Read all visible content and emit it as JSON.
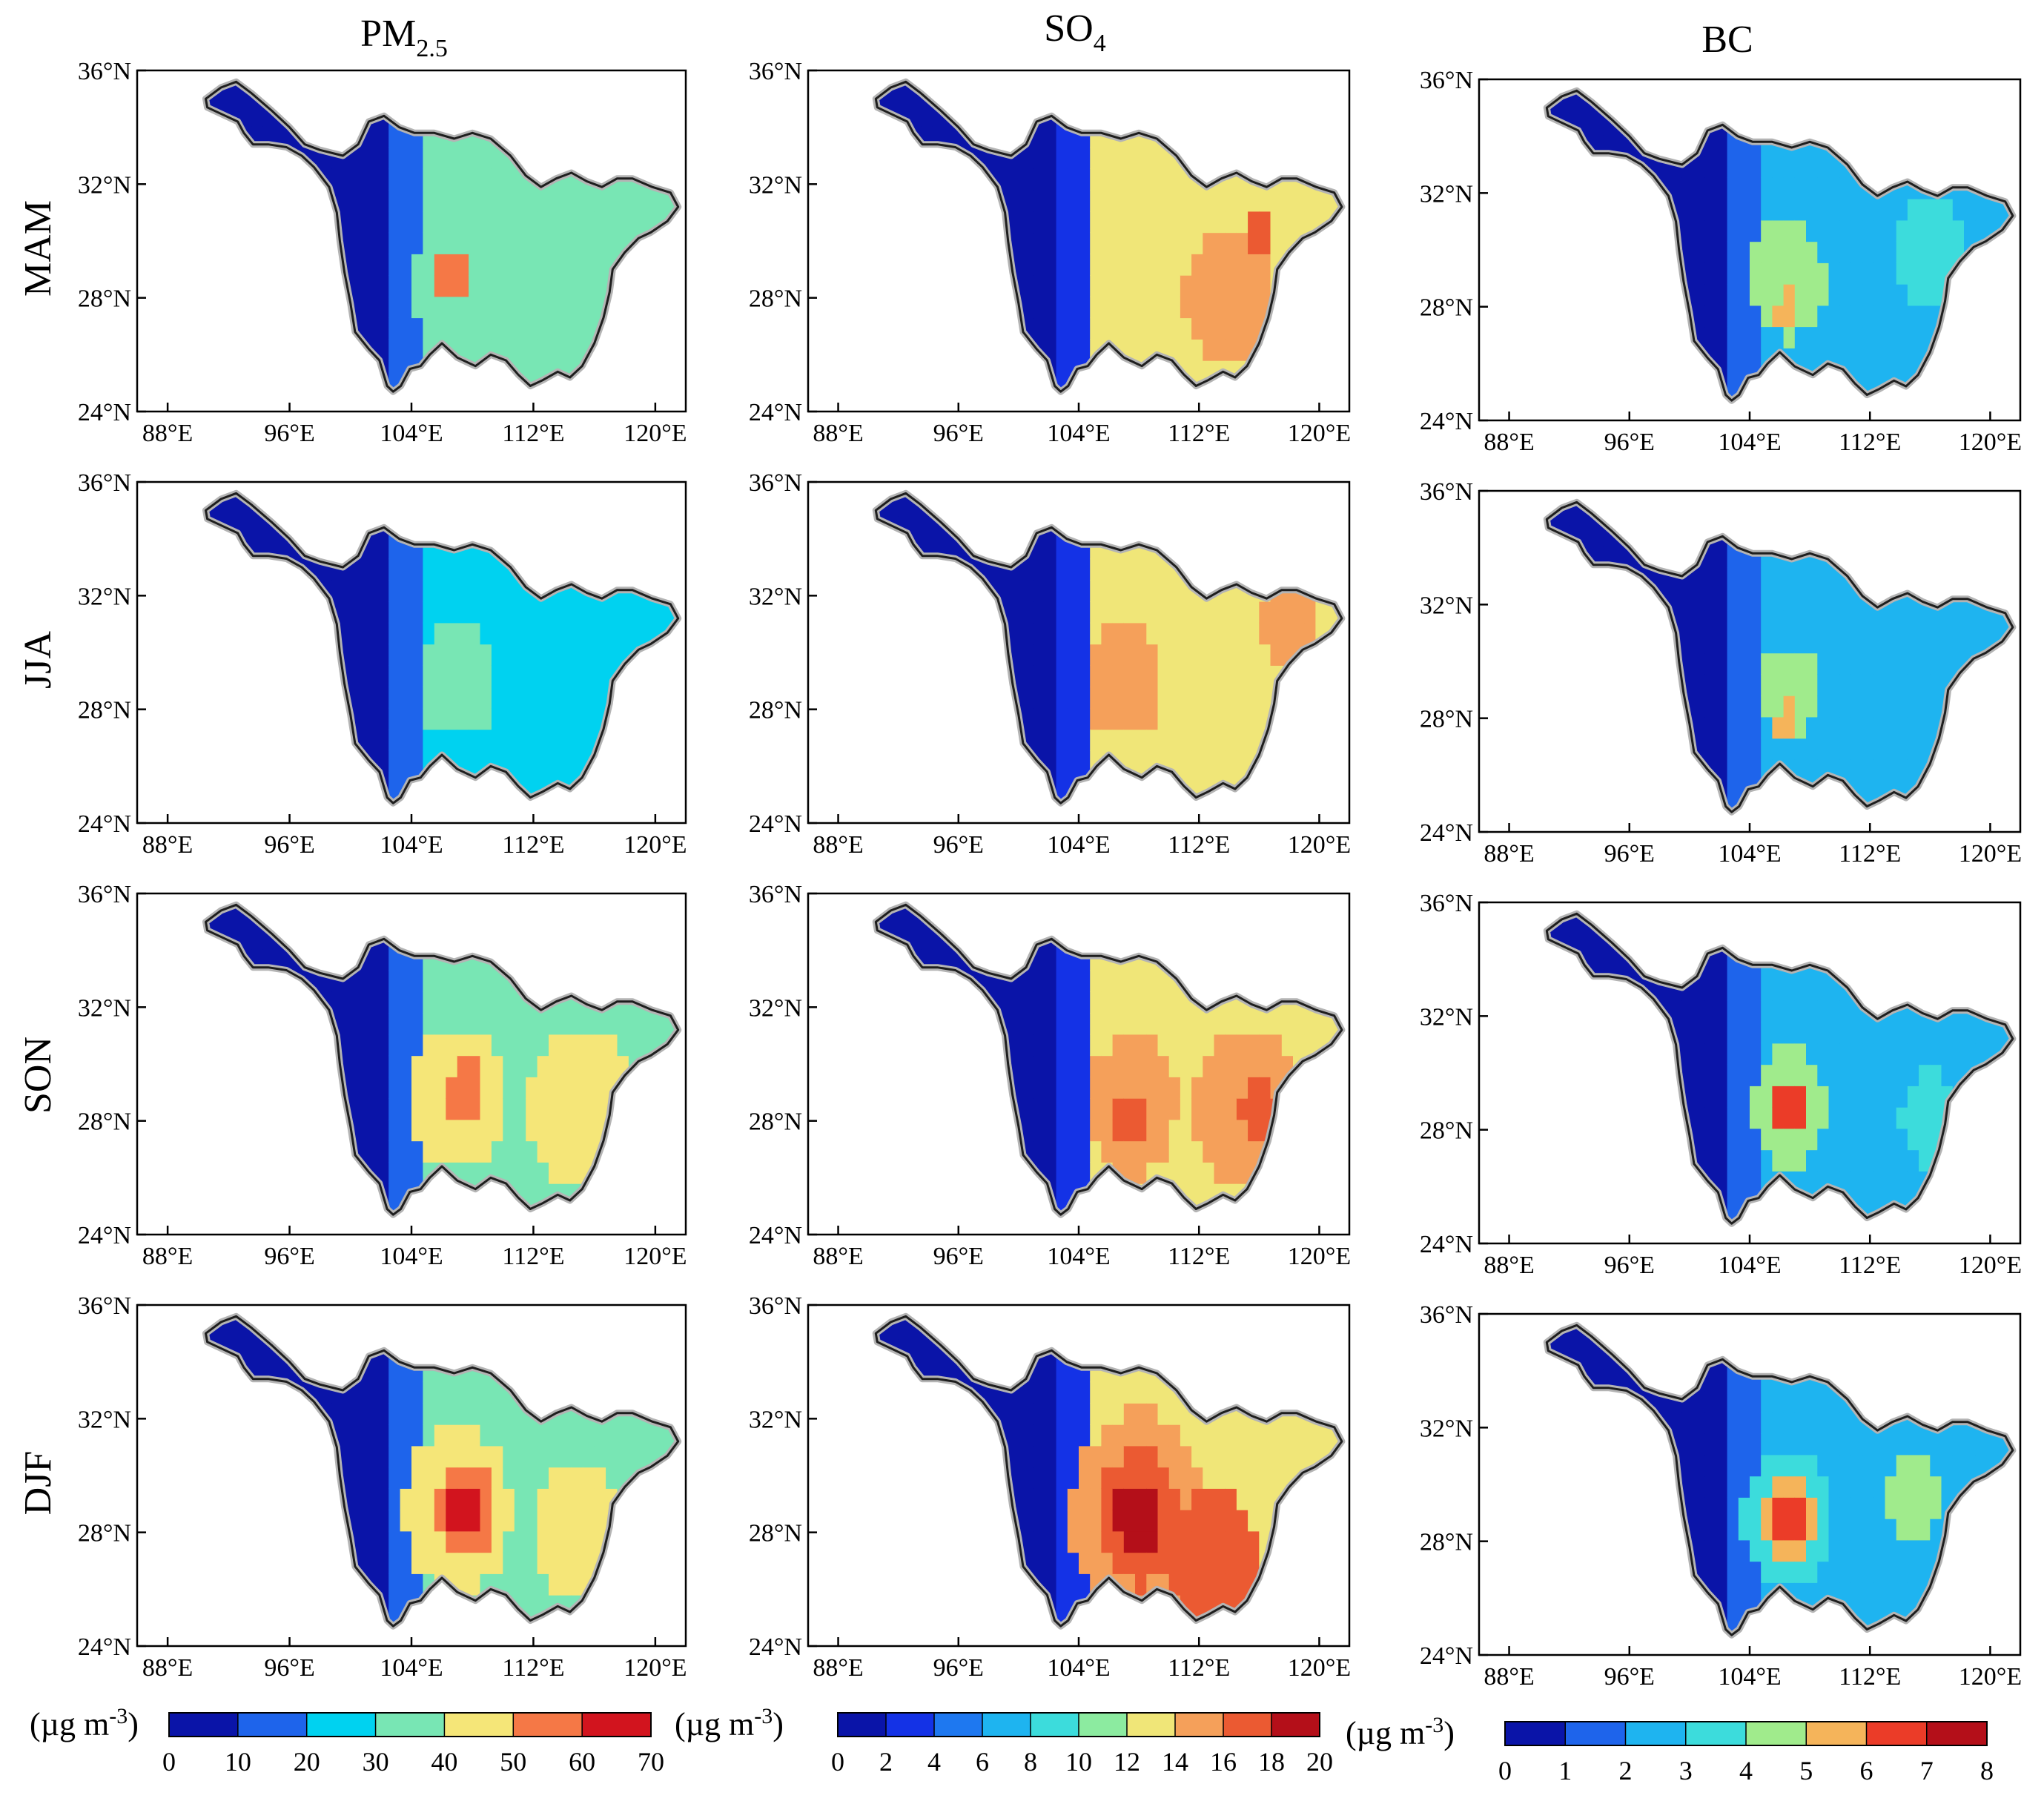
{
  "figure": {
    "columns": [
      {
        "title": "PM",
        "title_sub": "2.5"
      },
      {
        "title": "SO",
        "title_sub": "4"
      },
      {
        "title": "BC",
        "title_sub": ""
      }
    ],
    "seasons": [
      "MAM",
      "JJA",
      "SON",
      "DJF"
    ],
    "lat_ticks": [
      "24°N",
      "28°N",
      "32°N",
      "36°N"
    ],
    "lon_ticks": [
      "88°E",
      "96°E",
      "104°E",
      "112°E",
      "120°E"
    ],
    "lon_range": [
      86,
      122
    ],
    "lat_range": [
      24,
      36
    ]
  },
  "colorbars": [
    {
      "unit": "(µg m",
      "unit_sup": "-3",
      "unit_close": ")",
      "ticks": [
        "0",
        "10",
        "20",
        "30",
        "40",
        "50",
        "60",
        "70"
      ],
      "colors": [
        "#0a14a8",
        "#1e64eb",
        "#00d2f0",
        "#78e6b4",
        "#f5e678",
        "#f57846",
        "#d2141e"
      ]
    },
    {
      "unit": "(µg m",
      "unit_sup": "-3",
      "unit_close": ")",
      "ticks": [
        "0",
        "2",
        "4",
        "6",
        "8",
        "10",
        "12",
        "14",
        "16",
        "18",
        "20"
      ],
      "colors": [
        "#0a14a8",
        "#1432e6",
        "#1e78f0",
        "#1eb4f0",
        "#3cdcdc",
        "#8ceba0",
        "#f0e678",
        "#f5a05a",
        "#eb5a32",
        "#b40f19"
      ]
    },
    {
      "unit": "(µg m",
      "unit_sup": "-3",
      "unit_close": ")",
      "ticks": [
        "0",
        "1",
        "2",
        "3",
        "4",
        "5",
        "6",
        "7",
        "8"
      ],
      "colors": [
        "#0a14a8",
        "#1e64eb",
        "#1eb4f0",
        "#3cdcdc",
        "#a0eb8c",
        "#f5b45a",
        "#eb3c28",
        "#b40f19"
      ]
    }
  ],
  "map_fields": [
    [
      {
        "base": 3,
        "blobs": [
          [
            [
              107,
              28.5
            ],
            3,
            3
          ],
          [
            [
              106.5,
              28.8
            ],
            1.2,
            5
          ],
          [
            [
              114,
              28
            ],
            2.2,
            3
          ],
          [
            [
              104,
              31
            ],
            1.5,
            1
          ]
        ]
      },
      {
        "base": 6,
        "blobs": [
          [
            [
              114,
              28
            ],
            3,
            7
          ],
          [
            [
              108,
              28.5
            ],
            2.5,
            6
          ],
          [
            [
              116,
              30
            ],
            1,
            8
          ]
        ]
      },
      {
        "base": 2,
        "blobs": [
          [
            [
              106.5,
              29
            ],
            2.5,
            4
          ],
          [
            [
              106.5,
              28
            ],
            0.8,
            5
          ],
          [
            [
              116,
              30
            ],
            2.5,
            3
          ],
          [
            [
              112,
              27
            ],
            1.5,
            1
          ]
        ]
      }
    ],
    [
      {
        "base": 2,
        "blobs": [
          [
            [
              107,
              29
            ],
            2.5,
            3
          ],
          [
            [
              112,
              27
            ],
            3,
            2
          ]
        ]
      },
      {
        "base": 6,
        "blobs": [
          [
            [
              107,
              29
            ],
            2.5,
            7
          ],
          [
            [
              114,
              28
            ],
            2,
            6
          ],
          [
            [
              118,
              31
            ],
            2,
            7
          ]
        ]
      },
      {
        "base": 2,
        "blobs": [
          [
            [
              106.5,
              29
            ],
            2,
            4
          ],
          [
            [
              106.5,
              28
            ],
            0.8,
            5
          ],
          [
            [
              110,
              29
            ],
            1.8,
            1
          ]
        ]
      }
    ],
    [
      {
        "base": 3,
        "blobs": [
          [
            [
              107,
              28.8
            ],
            3,
            4
          ],
          [
            [
              107.5,
              29
            ],
            1.3,
            5
          ],
          [
            [
              115,
              28.5
            ],
            3.5,
            4
          ],
          [
            [
              112,
              31
            ],
            2,
            2
          ]
        ]
      },
      {
        "base": 6,
        "blobs": [
          [
            [
              107.5,
              28.5
            ],
            3,
            7
          ],
          [
            [
              107.5,
              28
            ],
            1.2,
            8
          ],
          [
            [
              115,
              28.5
            ],
            3.5,
            7
          ],
          [
            [
              116,
              28.5
            ],
            1.2,
            8
          ]
        ]
      },
      {
        "base": 2,
        "blobs": [
          [
            [
              106.5,
              28.8
            ],
            2.5,
            4
          ],
          [
            [
              106.5,
              28.8
            ],
            1.3,
            6
          ],
          [
            [
              112,
              30
            ],
            1.5,
            1
          ],
          [
            [
              116,
              28.5
            ],
            2,
            3
          ]
        ]
      }
    ],
    [
      {
        "base": 3,
        "blobs": [
          [
            [
              107,
              28.8
            ],
            3.5,
            4
          ],
          [
            [
              107.5,
              28.8
            ],
            2,
            5
          ],
          [
            [
              107.5,
              28.8
            ],
            1.2,
            6
          ],
          [
            [
              115,
              28
            ],
            3,
            4
          ]
        ]
      },
      {
        "base": 6,
        "blobs": [
          [
            [
              108,
              28.5
            ],
            4.5,
            7
          ],
          [
            [
              108,
              28.5
            ],
            2.8,
            8
          ],
          [
            [
              108,
              28.5
            ],
            1.6,
            9
          ],
          [
            [
              113,
              27
            ],
            3,
            8
          ]
        ]
      },
      {
        "base": 2,
        "blobs": [
          [
            [
              106.5,
              28.8
            ],
            3,
            3
          ],
          [
            [
              106.5,
              28.8
            ],
            1.8,
            5
          ],
          [
            [
              106.5,
              28.8
            ],
            1,
            6
          ],
          [
            [
              115,
              29.5
            ],
            1.8,
            4
          ]
        ]
      }
    ]
  ]
}
